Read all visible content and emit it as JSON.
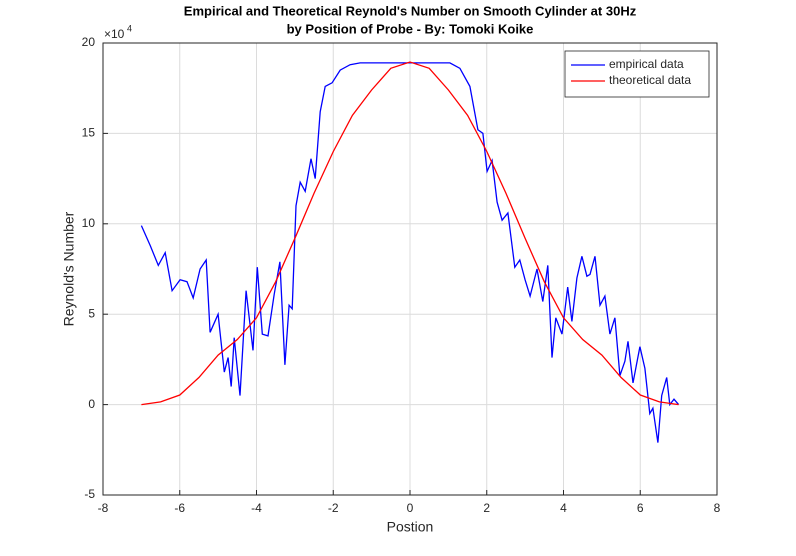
{
  "chart_data": {
    "type": "line",
    "title": [
      "Empirical and Theoretical Reynold's Number  on Smooth Cylinder at 30Hz",
      "by Position of Probe - By: Tomoki Koike"
    ],
    "xlabel": "Postion",
    "ylabel": "Reynold's Number",
    "y_scale_base": "×10",
    "y_scale_exponent": "4",
    "xlim": [
      -8,
      8
    ],
    "ylim": [
      -5,
      20
    ],
    "xticks": [
      -8,
      -6,
      -4,
      -2,
      0,
      2,
      4,
      6,
      8
    ],
    "yticks": [
      -5,
      0,
      5,
      10,
      15,
      20
    ],
    "grid": true,
    "legend_position": "northeast",
    "series": [
      {
        "name": "empirical data",
        "color": "#0000ff",
        "x": [
          -7.0,
          -6.77,
          -6.56,
          -6.38,
          -6.2,
          -5.99,
          -5.81,
          -5.65,
          -5.47,
          -5.31,
          -5.21,
          -5.0,
          -4.84,
          -4.74,
          -4.66,
          -4.58,
          -4.43,
          -4.27,
          -4.09,
          -3.98,
          -3.85,
          -3.7,
          -3.54,
          -3.39,
          -3.26,
          -3.15,
          -3.07,
          -2.97,
          -2.86,
          -2.73,
          -2.58,
          -2.47,
          -2.34,
          -2.21,
          -2.03,
          -1.82,
          -1.56,
          -1.3,
          0,
          1.04,
          1.3,
          1.56,
          1.77,
          1.9,
          2.01,
          2.14,
          2.27,
          2.4,
          2.55,
          2.73,
          2.86,
          3.0,
          3.13,
          3.31,
          3.46,
          3.59,
          3.7,
          3.8,
          3.96,
          4.11,
          4.22,
          4.35,
          4.48,
          4.61,
          4.69,
          4.82,
          4.95,
          5.08,
          5.21,
          5.34,
          5.47,
          5.6,
          5.68,
          5.81,
          5.99,
          6.12,
          6.25,
          6.33,
          6.46,
          6.56,
          6.69,
          6.77,
          6.88,
          7.0
        ],
        "values": [
          9.9,
          8.8,
          7.7,
          8.4,
          6.3,
          6.9,
          6.8,
          5.9,
          7.5,
          8.0,
          4.0,
          5.0,
          1.8,
          2.6,
          1.0,
          3.7,
          0.5,
          6.3,
          3.0,
          7.6,
          3.9,
          3.8,
          6.1,
          7.9,
          2.2,
          5.5,
          5.3,
          11.0,
          12.3,
          11.8,
          13.6,
          12.5,
          16.2,
          17.6,
          17.8,
          18.5,
          18.8,
          18.9,
          18.9,
          18.9,
          18.6,
          17.6,
          15.2,
          15.0,
          12.9,
          13.5,
          11.2,
          10.2,
          10.6,
          7.6,
          8.0,
          6.9,
          6.0,
          7.5,
          5.7,
          7.7,
          2.6,
          4.8,
          3.9,
          6.5,
          4.6,
          7.0,
          8.2,
          7.1,
          7.2,
          8.2,
          5.5,
          6.0,
          3.9,
          4.8,
          1.6,
          2.4,
          3.5,
          1.2,
          3.2,
          2.0,
          -0.5,
          -0.2,
          -2.1,
          0.5,
          1.5,
          0.0,
          0.3,
          0.0
        ]
      },
      {
        "name": "theoretical data",
        "color": "#ff0000",
        "x": [
          -7,
          -6.5,
          -6,
          -5.5,
          -5,
          -4.5,
          -4,
          -3.5,
          -3,
          -2.5,
          -2,
          -1.5,
          -1,
          -0.5,
          0,
          0.5,
          1,
          1.5,
          2,
          2.5,
          3,
          3.5,
          4,
          4.5,
          5,
          5.5,
          6,
          6.5,
          7
        ],
        "values": [
          0,
          0.15,
          0.53,
          1.5,
          2.74,
          3.6,
          4.8,
          6.8,
          9.2,
          11.7,
          14.0,
          16.0,
          17.4,
          18.6,
          18.95,
          18.6,
          17.4,
          16.0,
          14.0,
          11.7,
          9.2,
          6.8,
          4.8,
          3.6,
          2.74,
          1.5,
          0.53,
          0.15,
          0
        ]
      }
    ]
  }
}
